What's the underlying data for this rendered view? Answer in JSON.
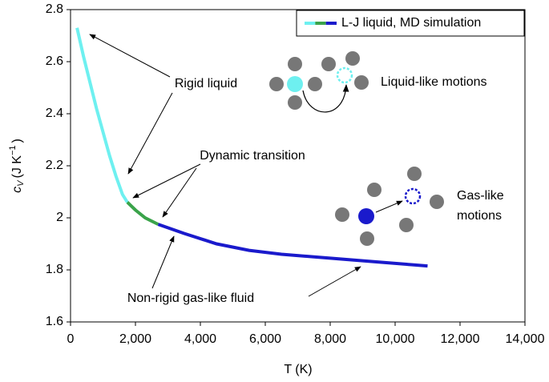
{
  "chart_data": {
    "type": "line",
    "xlabel": "T (K)",
    "ylabel": {
      "symbol": "c",
      "subscript": "V",
      "unit": "(J K",
      "superscript": "−1",
      "close": ")"
    },
    "xlim": [
      0,
      14000
    ],
    "ylim": [
      1.6,
      2.8
    ],
    "xticks": [
      0,
      {
        "value": 2000,
        "label": "2,000"
      },
      {
        "value": 4000,
        "label": "4,000"
      },
      {
        "value": 6000,
        "label": "6,000"
      },
      {
        "value": 8000,
        "label": "8,000"
      },
      {
        "value": 10000,
        "label": "10,000"
      },
      {
        "value": 12000,
        "label": "12,000"
      },
      {
        "value": 14000,
        "label": "14,000"
      }
    ],
    "yticks": [
      1.6,
      1.8,
      2,
      2.2,
      2.4,
      2.6,
      2.8
    ],
    "legend": "upper right",
    "series": [
      {
        "name": "L-J liquid, MD simulation",
        "segments": [
          {
            "color": "#6ef0f0",
            "x": [
              200,
              400,
              600,
              800,
              1000,
              1200,
              1400,
              1600,
              1750
            ],
            "values": [
              2.73,
              2.62,
              2.52,
              2.42,
              2.33,
              2.24,
              2.16,
              2.09,
              2.06
            ]
          },
          {
            "color": "#3aa34a",
            "x": [
              1750,
              2000,
              2300,
              2700
            ],
            "values": [
              2.06,
              2.03,
              2.0,
              1.975
            ]
          },
          {
            "color": "#1a1acc",
            "x": [
              2700,
              3500,
              4500,
              5500,
              6500,
              7500,
              8500,
              9500,
              10500,
              11000
            ],
            "values": [
              1.975,
              1.94,
              1.9,
              1.875,
              1.86,
              1.85,
              1.84,
              1.83,
              1.82,
              1.815
            ]
          }
        ]
      }
    ],
    "annotations": [
      "Rigid liquid",
      "Dynamic transition",
      "Non-rigid gas-like fluid",
      "Liquid-like motions",
      "Gas-like",
      "motions"
    ]
  }
}
